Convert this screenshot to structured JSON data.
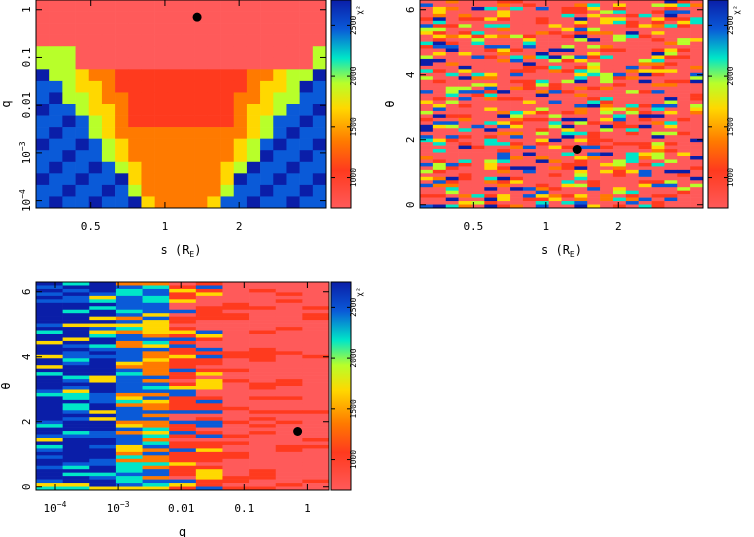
{
  "colors": {
    "scale": [
      "#ff5a5a",
      "#ff3a1e",
      "#ff7a00",
      "#ffd800",
      "#b8ff2a",
      "#00e6c8",
      "#0a5ad8",
      "#0a1ea8"
    ],
    "point": "#000000"
  },
  "chart_data": [
    {
      "type": "heatmap",
      "xlabel": "s (R",
      "xlabel_sub": "E",
      "xlabel_close": ")",
      "ylabel": "q",
      "xscale": "log",
      "yscale": "log",
      "xlim": [
        0.3,
        4.5
      ],
      "ylim": [
        7e-05,
        1.6
      ],
      "xticks": [
        {
          "v": 0.5,
          "label": "0.5"
        },
        {
          "v": 1,
          "label": "1"
        },
        {
          "v": 2,
          "label": "2"
        }
      ],
      "yticks": [
        {
          "v": 1,
          "label": "1"
        },
        {
          "v": 0.1,
          "label": "0.1"
        },
        {
          "v": 0.01,
          "label": "0.01"
        },
        {
          "v": 0.001,
          "label": "10",
          "sup": "−3"
        },
        {
          "v": 0.0001,
          "label": "10",
          "sup": "−4"
        }
      ],
      "colorbar": {
        "label": "χ²",
        "ticks": [
          {
            "v": 1000,
            "label": "1000"
          },
          {
            "v": 1500,
            "label": "1500"
          },
          {
            "v": 2000,
            "label": "2000"
          },
          {
            "v": 2500,
            "label": "2500"
          }
        ],
        "range": [
          700,
          2750
        ]
      },
      "best_fit": {
        "x": 1.35,
        "y": 0.7
      }
    },
    {
      "type": "heatmap",
      "xlabel": "s (R",
      "xlabel_sub": "E",
      "xlabel_close": ")",
      "ylabel": "θ",
      "xscale": "log",
      "yscale": "linear",
      "xlim": [
        0.3,
        4.5
      ],
      "ylim": [
        -0.1,
        6.3
      ],
      "xticks": [
        {
          "v": 0.5,
          "label": "0.5"
        },
        {
          "v": 1,
          "label": "1"
        },
        {
          "v": 2,
          "label": "2"
        }
      ],
      "yticks": [
        {
          "v": 0,
          "label": "0"
        },
        {
          "v": 2,
          "label": "2"
        },
        {
          "v": 4,
          "label": "4"
        },
        {
          "v": 6,
          "label": "6"
        }
      ],
      "colorbar": {
        "label": "χ²",
        "ticks": [
          {
            "v": 1000,
            "label": "1000"
          },
          {
            "v": 1500,
            "label": "1500"
          },
          {
            "v": 2000,
            "label": "2000"
          },
          {
            "v": 2500,
            "label": "2500"
          }
        ],
        "range": [
          700,
          2750
        ]
      },
      "best_fit": {
        "x": 1.35,
        "y": 1.7
      }
    },
    {
      "type": "heatmap",
      "xlabel": "q",
      "ylabel": "θ",
      "xscale": "log",
      "yscale": "linear",
      "xlim": [
        5e-05,
        2.2
      ],
      "ylim": [
        -0.1,
        6.3
      ],
      "xticks": [
        {
          "v": 0.0001,
          "label": "10",
          "sup": "−4"
        },
        {
          "v": 0.001,
          "label": "10",
          "sup": "−3"
        },
        {
          "v": 0.01,
          "label": "0.01"
        },
        {
          "v": 0.1,
          "label": "0.1"
        },
        {
          "v": 1,
          "label": "1"
        }
      ],
      "yticks": [
        {
          "v": 0,
          "label": "0"
        },
        {
          "v": 2,
          "label": "2"
        },
        {
          "v": 4,
          "label": "4"
        },
        {
          "v": 6,
          "label": "6"
        }
      ],
      "colorbar": {
        "label": "χ²",
        "ticks": [
          {
            "v": 1000,
            "label": "1000"
          },
          {
            "v": 1500,
            "label": "1500"
          },
          {
            "v": 2000,
            "label": "2000"
          },
          {
            "v": 2500,
            "label": "2500"
          }
        ],
        "range": [
          700,
          2750
        ]
      },
      "best_fit": {
        "x": 0.7,
        "y": 1.7
      }
    }
  ]
}
